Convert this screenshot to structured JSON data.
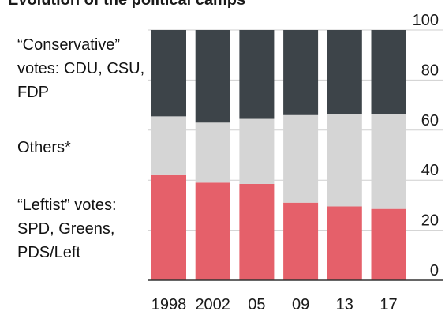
{
  "chart_data": {
    "type": "stacked_bar",
    "title": "Evolution of the political camps",
    "categories": [
      "1998",
      "2002",
      "05",
      "09",
      "13",
      "17"
    ],
    "series": [
      {
        "name": "“Conservative” votes: CDU, CSU, FDP",
        "color": "#3d4449",
        "values": [
          34.5,
          37,
          35.5,
          34,
          33.5,
          33.5
        ]
      },
      {
        "name": "Others*",
        "color": "#d5d5d5",
        "values": [
          23.5,
          24,
          26,
          35,
          37,
          38
        ]
      },
      {
        "name": "“Leftist” votes: SPD, Greens, PDS/Left",
        "color": "#e5606a",
        "values": [
          42,
          39,
          38.5,
          31,
          29.5,
          28.5
        ]
      }
    ],
    "ylim": [
      0,
      100
    ],
    "yticks": [
      0,
      20,
      40,
      60,
      80,
      100
    ],
    "grid": true
  }
}
